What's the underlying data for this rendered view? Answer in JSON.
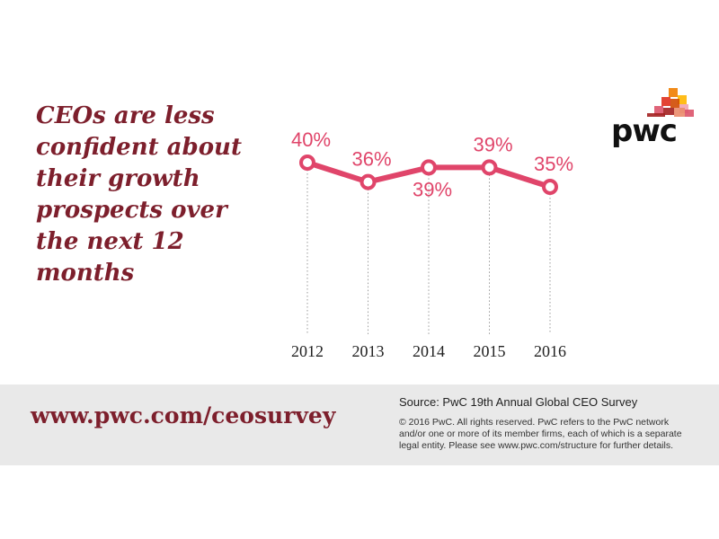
{
  "headline": "CEOs are less confident about their growth prospects over the next 12 months",
  "logo_text": "pwc",
  "colors": {
    "accent": "#e0456a",
    "headline": "#7d1f2c",
    "footer_bg": "#e9e9e9",
    "logo_squares": [
      "#ef7d00",
      "#e0301e",
      "#d04a02",
      "#db536a",
      "#ffb600",
      "#f2a3b3",
      "#a32020",
      "#ea8c6b"
    ]
  },
  "chart_data": {
    "type": "line",
    "title": "",
    "xlabel": "",
    "ylabel": "",
    "categories": [
      "2012",
      "2013",
      "2014",
      "2015",
      "2016"
    ],
    "series": [
      {
        "values": [
          40,
          36,
          39,
          39,
          35
        ],
        "labels": [
          "40%",
          "36%",
          "39%",
          "39%",
          "35%"
        ]
      }
    ],
    "grid": false,
    "legend": "none"
  },
  "footer": {
    "url": "www.pwc.com/ceosurvey",
    "source": "Source: PwC 19th Annual Global CEO Survey",
    "legal_lines": [
      "© 2016 PwC. All rights reserved. PwC refers to the PwC network",
      "and/or one or more of its member firms, each of which is a separate",
      "legal entity. Please see www.pwc.com/structure for further details."
    ]
  }
}
